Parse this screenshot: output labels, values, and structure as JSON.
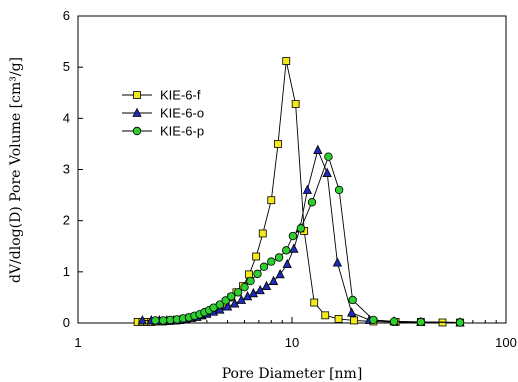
{
  "chart_data": {
    "type": "scatter",
    "xlabel": "Pore Diameter [nm]",
    "ylabel": "dV/dlog(D) Pore Volume [cm³/g]",
    "xscale": "log",
    "xlim": [
      1,
      100
    ],
    "ylim": [
      0,
      6
    ],
    "x_ticks": [
      "1",
      "10",
      "100"
    ],
    "y_ticks": [
      "0",
      "1",
      "2",
      "3",
      "4",
      "5",
      "6"
    ],
    "grid": false,
    "legend_position": "upper-left",
    "series": [
      {
        "name": "KIE-6-f",
        "marker": "square",
        "color": "#f2ea1a",
        "points": [
          [
            1.9,
            0.02
          ],
          [
            2.0,
            0.02
          ],
          [
            2.1,
            0.02
          ],
          [
            2.2,
            0.02
          ],
          [
            2.3,
            0.03
          ],
          [
            2.4,
            0.03
          ],
          [
            2.5,
            0.03
          ],
          [
            2.6,
            0.04
          ],
          [
            2.7,
            0.04
          ],
          [
            2.8,
            0.05
          ],
          [
            2.9,
            0.05
          ],
          [
            3.0,
            0.06
          ],
          [
            3.2,
            0.08
          ],
          [
            3.4,
            0.1
          ],
          [
            3.6,
            0.12
          ],
          [
            3.8,
            0.15
          ],
          [
            4.0,
            0.19
          ],
          [
            4.2,
            0.23
          ],
          [
            4.4,
            0.28
          ],
          [
            4.6,
            0.33
          ],
          [
            4.9,
            0.4
          ],
          [
            5.2,
            0.5
          ],
          [
            5.5,
            0.6
          ],
          [
            5.9,
            0.72
          ],
          [
            6.3,
            0.95
          ],
          [
            6.8,
            1.3
          ],
          [
            7.3,
            1.75
          ],
          [
            8.0,
            2.4
          ],
          [
            8.6,
            3.5
          ],
          [
            9.4,
            5.12
          ],
          [
            10.4,
            4.28
          ],
          [
            11.4,
            1.8
          ],
          [
            12.7,
            0.4
          ],
          [
            14.3,
            0.15
          ],
          [
            16.5,
            0.08
          ],
          [
            19.5,
            0.05
          ],
          [
            24.0,
            0.03
          ],
          [
            30.5,
            0.02
          ],
          [
            40.0,
            0.02
          ],
          [
            50.5,
            0.01
          ],
          [
            61.0,
            0.01
          ]
        ]
      },
      {
        "name": "KIE-6-o",
        "marker": "triangle",
        "color": "#1f2bb8",
        "points": [
          [
            2.0,
            0.05
          ],
          [
            2.2,
            0.05
          ],
          [
            2.4,
            0.05
          ],
          [
            2.6,
            0.05
          ],
          [
            2.8,
            0.05
          ],
          [
            3.0,
            0.06
          ],
          [
            3.2,
            0.08
          ],
          [
            3.4,
            0.1
          ],
          [
            3.6,
            0.12
          ],
          [
            3.8,
            0.15
          ],
          [
            4.0,
            0.18
          ],
          [
            4.3,
            0.22
          ],
          [
            4.6,
            0.26
          ],
          [
            5.0,
            0.32
          ],
          [
            5.4,
            0.38
          ],
          [
            5.8,
            0.45
          ],
          [
            6.2,
            0.52
          ],
          [
            6.6,
            0.58
          ],
          [
            7.1,
            0.64
          ],
          [
            7.6,
            0.72
          ],
          [
            8.2,
            0.82
          ],
          [
            8.8,
            0.95
          ],
          [
            9.5,
            1.15
          ],
          [
            10.2,
            1.45
          ],
          [
            10.9,
            1.85
          ],
          [
            11.8,
            2.6
          ],
          [
            13.2,
            3.38
          ],
          [
            14.6,
            2.93
          ],
          [
            16.3,
            1.18
          ],
          [
            19.0,
            0.2
          ],
          [
            23.0,
            0.06
          ],
          [
            30.0,
            0.03
          ],
          [
            40.0,
            0.02
          ],
          [
            61.0,
            0.01
          ]
        ]
      },
      {
        "name": "KIE-6-p",
        "marker": "circle",
        "color": "#2fcf2f",
        "points": [
          [
            2.3,
            0.05
          ],
          [
            2.5,
            0.05
          ],
          [
            2.7,
            0.06
          ],
          [
            2.9,
            0.07
          ],
          [
            3.1,
            0.09
          ],
          [
            3.3,
            0.11
          ],
          [
            3.5,
            0.14
          ],
          [
            3.7,
            0.17
          ],
          [
            3.9,
            0.21
          ],
          [
            4.1,
            0.25
          ],
          [
            4.3,
            0.3
          ],
          [
            4.6,
            0.36
          ],
          [
            4.9,
            0.44
          ],
          [
            5.2,
            0.52
          ],
          [
            5.6,
            0.6
          ],
          [
            6.0,
            0.7
          ],
          [
            6.4,
            0.82
          ],
          [
            6.9,
            0.96
          ],
          [
            7.4,
            1.1
          ],
          [
            8.0,
            1.2
          ],
          [
            8.7,
            1.28
          ],
          [
            9.4,
            1.42
          ],
          [
            10.1,
            1.7
          ],
          [
            11.0,
            1.85
          ],
          [
            12.4,
            2.36
          ],
          [
            14.8,
            3.25
          ],
          [
            16.6,
            2.6
          ],
          [
            19.2,
            0.45
          ],
          [
            24.0,
            0.06
          ],
          [
            30.0,
            0.03
          ],
          [
            40.0,
            0.02
          ],
          [
            61.0,
            0.01
          ]
        ]
      }
    ]
  }
}
